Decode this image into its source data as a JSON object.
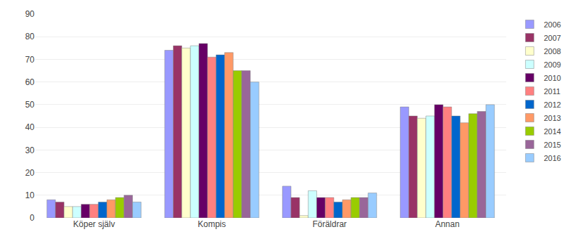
{
  "chart_data": {
    "type": "bar",
    "categories": [
      "Köper själv",
      "Kompis",
      "Föräldrar",
      "Annan"
    ],
    "series": [
      {
        "name": "2006",
        "color": "#9999FF",
        "values": [
          8,
          74,
          14,
          49
        ]
      },
      {
        "name": "2007",
        "color": "#993366",
        "values": [
          7,
          76,
          9,
          45
        ]
      },
      {
        "name": "2008",
        "color": "#FFFFCC",
        "values": [
          5,
          75,
          1,
          44
        ]
      },
      {
        "name": "2009",
        "color": "#CCFFFF",
        "values": [
          5,
          76,
          12,
          45
        ]
      },
      {
        "name": "2010",
        "color": "#660066",
        "values": [
          6,
          77,
          9,
          50
        ]
      },
      {
        "name": "2011",
        "color": "#FF8080",
        "values": [
          6,
          71,
          9,
          49
        ]
      },
      {
        "name": "2012",
        "color": "#0066CC",
        "values": [
          7,
          72,
          7,
          45
        ]
      },
      {
        "name": "2013",
        "color": "#FF9966",
        "values": [
          8,
          73,
          8,
          42
        ]
      },
      {
        "name": "2014",
        "color": "#99CC00",
        "values": [
          9,
          65,
          9,
          46
        ]
      },
      {
        "name": "2015",
        "color": "#996699",
        "values": [
          10,
          65,
          9,
          47
        ]
      },
      {
        "name": "2016",
        "color": "#99CCFF",
        "values": [
          7,
          60,
          11,
          50
        ]
      }
    ],
    "ylim": [
      0,
      90
    ],
    "yticks": [
      0,
      10,
      20,
      30,
      40,
      50,
      60,
      70,
      80,
      90
    ],
    "grid": true,
    "legend": "right"
  }
}
